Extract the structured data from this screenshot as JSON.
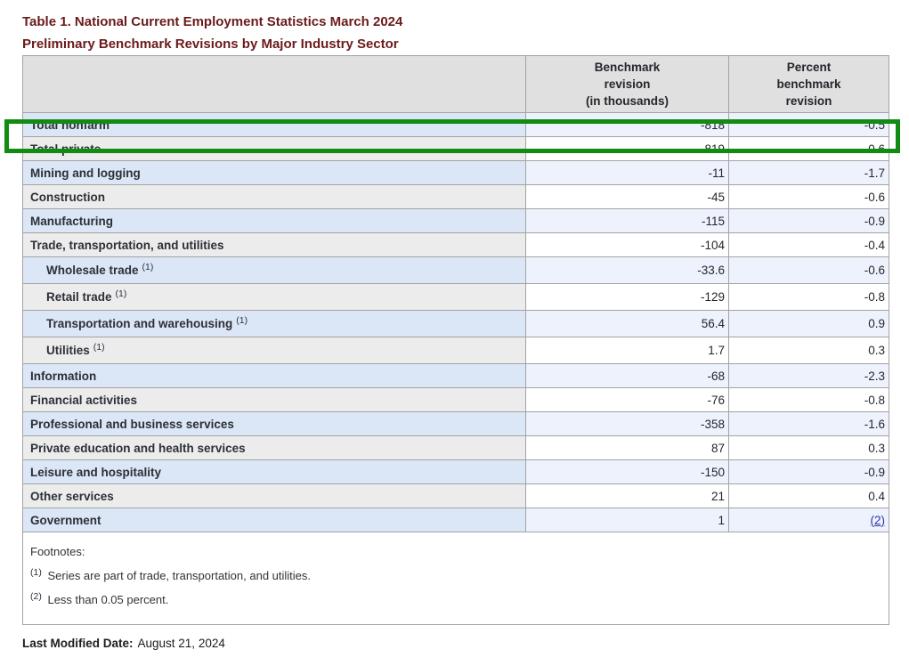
{
  "page": {
    "title_line1": "Table 1. National Current Employment Statistics March 2024",
    "title_line2": "Preliminary Benchmark Revisions by Major Industry Sector",
    "last_modified": {
      "label": "Last Modified Date:",
      "value": "August 21, 2024"
    }
  },
  "colors": {
    "title": "#6b1a1a",
    "header_bg": "#e0e0e0",
    "row_blue_label_bg": "#dbe6f6",
    "row_blue_data_bg": "#edf2fc",
    "row_gray_label_bg": "#ececec",
    "row_gray_data_bg": "#ffffff",
    "border": "#a3a3a3",
    "highlight_box": "#118b11",
    "link": "#2f33b0"
  },
  "annotation": {
    "highlighted_row": "Total nonfarm"
  },
  "table": {
    "headers": {
      "col1": "",
      "col2": "Benchmark\nrevision\n(in thousands)",
      "col3": "Percent\nbenchmark\nrevision"
    },
    "rows": [
      {
        "label": "Total nonfarm",
        "marker": "",
        "revision": "-818",
        "percent": "-0.5"
      },
      {
        "label": "Total private",
        "marker": "",
        "revision": "-819",
        "percent": "-0.6"
      },
      {
        "label": "Mining and logging",
        "marker": "",
        "revision": "-11",
        "percent": "-1.7"
      },
      {
        "label": "Construction",
        "marker": "",
        "revision": "-45",
        "percent": "-0.6"
      },
      {
        "label": "Manufacturing",
        "marker": "",
        "revision": "-115",
        "percent": "-0.9"
      },
      {
        "label": "Trade, transportation, and utilities",
        "marker": "",
        "revision": "-104",
        "percent": "-0.4"
      },
      {
        "label": "Wholesale trade",
        "marker": "(1)",
        "revision": "-33.6",
        "percent": "-0.6"
      },
      {
        "label": "Retail trade",
        "marker": "(1)",
        "revision": "-129",
        "percent": "-0.8"
      },
      {
        "label": "Transportation and warehousing",
        "marker": "(1)",
        "revision": "56.4",
        "percent": "0.9"
      },
      {
        "label": "Utilities",
        "marker": "(1)",
        "revision": "1.7",
        "percent": "0.3"
      },
      {
        "label": "Information",
        "marker": "",
        "revision": "-68",
        "percent": "-2.3"
      },
      {
        "label": "Financial activities",
        "marker": "",
        "revision": "-76",
        "percent": "-0.8"
      },
      {
        "label": "Professional and business services",
        "marker": "",
        "revision": "-358",
        "percent": "-1.6"
      },
      {
        "label": "Private education and health services",
        "marker": "",
        "revision": "87",
        "percent": "0.3"
      },
      {
        "label": "Leisure and hospitality",
        "marker": "",
        "revision": "-150",
        "percent": "-0.9"
      },
      {
        "label": "Other services",
        "marker": "",
        "revision": "21",
        "percent": "0.4"
      },
      {
        "label": "Government",
        "marker": "",
        "revision": "1",
        "percent": "(2)"
      }
    ],
    "footnotes": {
      "label": "Footnotes:",
      "items": [
        {
          "marker": "(1)",
          "text": "Series are part of trade, transportation, and utilities."
        },
        {
          "marker": "(2)",
          "text": "Less than 0.05 percent."
        }
      ]
    }
  }
}
